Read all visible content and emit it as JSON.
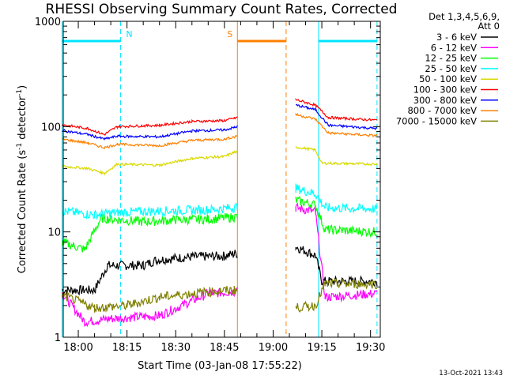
{
  "window": {
    "title": "RHESSI Observing Summary Count Rates, Corrected"
  },
  "chart_data": {
    "type": "line",
    "title": "RHESSI Observing Summary Count Rates, Corrected",
    "xlabel": "Start Time (03-Jan-08 17:55:22)",
    "ylabel": "Corrected Count Rate (s⁻¹ detector⁻¹)",
    "ylabel_parts": {
      "main": "Corrected Count Rate (s",
      "sup1": "-1",
      "mid": " detector",
      "sup2": "-1",
      "end": ")"
    },
    "yscale": "log",
    "ylim": [
      1,
      1000
    ],
    "xlim": [
      "17:55:22",
      "19:33:00"
    ],
    "xticks": [
      "18:00",
      "18:15",
      "18:30",
      "18:45",
      "19:00",
      "19:15",
      "19:30"
    ],
    "yticks": [
      "1",
      "10",
      "100",
      "1000"
    ],
    "grid": false,
    "legend_title": [
      "Det 1,3,4,5,6,9,",
      "Att 0"
    ],
    "legend_position": "top-right outside",
    "footer_date": "13-Oct-2021 13:43",
    "annotations": {
      "night_marker": "N",
      "saa_marker": "S"
    },
    "intervals": [
      {
        "label": "N",
        "color": "#00e5ff",
        "start": "17:55",
        "end": "18:13"
      },
      {
        "label": "",
        "color": "#00e5ff",
        "start": "19:14",
        "end": "19:32"
      },
      {
        "label": "S",
        "color": "#ff8000",
        "start": "18:49",
        "end": "19:04"
      }
    ],
    "gaps": [
      {
        "start": "18:49",
        "end": "19:07"
      }
    ],
    "series": [
      {
        "name": "3 - 6 keV",
        "color": "#000000",
        "points": [
          [
            "17:55",
            2.8
          ],
          [
            "18:05",
            2.8
          ],
          [
            "18:09",
            4.8
          ],
          [
            "18:20",
            4.8
          ],
          [
            "18:24",
            5.4
          ],
          [
            "18:35",
            5.8
          ],
          [
            "18:45",
            5.9
          ],
          [
            "18:48",
            6.2
          ],
          [
            "19:07",
            7.2
          ],
          [
            "19:13",
            6.0
          ],
          [
            "19:15",
            3.4
          ],
          [
            "19:32",
            3.4
          ]
        ]
      },
      {
        "name": "6 - 12 keV",
        "color": "#ff00ff",
        "points": [
          [
            "17:55",
            2.6
          ],
          [
            "18:02",
            1.4
          ],
          [
            "18:10",
            1.5
          ],
          [
            "18:25",
            1.6
          ],
          [
            "18:40",
            2.6
          ],
          [
            "18:48",
            2.7
          ],
          [
            "19:07",
            17.0
          ],
          [
            "19:13",
            15.5
          ],
          [
            "19:16",
            2.4
          ],
          [
            "19:32",
            2.6
          ]
        ]
      },
      {
        "name": "12 - 25 keV",
        "color": "#00ff00",
        "points": [
          [
            "17:55",
            8.0
          ],
          [
            "18:02",
            6.8
          ],
          [
            "18:07",
            13.5
          ],
          [
            "18:20",
            12.5
          ],
          [
            "18:30",
            13.0
          ],
          [
            "18:40",
            13.2
          ],
          [
            "18:48",
            13.8
          ],
          [
            "19:07",
            20.0
          ],
          [
            "19:13",
            18.0
          ],
          [
            "19:16",
            10.5
          ],
          [
            "19:32",
            10.0
          ]
        ]
      },
      {
        "name": "25 - 50 keV",
        "color": "#00ffff",
        "points": [
          [
            "17:55",
            15.8
          ],
          [
            "18:05",
            14.5
          ],
          [
            "18:12",
            15.3
          ],
          [
            "18:25",
            15.8
          ],
          [
            "18:40",
            16.2
          ],
          [
            "18:48",
            17.0
          ],
          [
            "19:07",
            26.0
          ],
          [
            "19:13",
            23.0
          ],
          [
            "19:16",
            17.0
          ],
          [
            "19:32",
            16.5
          ]
        ]
      },
      {
        "name": "50 - 100 keV",
        "color": "#d8d800",
        "points": [
          [
            "17:55",
            42
          ],
          [
            "18:03",
            40
          ],
          [
            "18:08",
            36
          ],
          [
            "18:12",
            44
          ],
          [
            "18:25",
            43
          ],
          [
            "18:35",
            50
          ],
          [
            "18:45",
            52
          ],
          [
            "18:48",
            57
          ],
          [
            "19:07",
            64
          ],
          [
            "19:13",
            60
          ],
          [
            "19:15",
            45
          ],
          [
            "19:32",
            44
          ]
        ]
      },
      {
        "name": "100 - 300 keV",
        "color": "#ff0000",
        "points": [
          [
            "17:55",
            104
          ],
          [
            "18:03",
            96
          ],
          [
            "18:08",
            84
          ],
          [
            "18:12",
            100
          ],
          [
            "18:25",
            103
          ],
          [
            "18:35",
            112
          ],
          [
            "18:45",
            114
          ],
          [
            "18:48",
            120
          ],
          [
            "19:07",
            180
          ],
          [
            "19:13",
            160
          ],
          [
            "19:17",
            122
          ],
          [
            "19:32",
            115
          ]
        ]
      },
      {
        "name": "300 - 800 keV",
        "color": "#0000ff",
        "points": [
          [
            "17:55",
            92
          ],
          [
            "18:03",
            84
          ],
          [
            "18:08",
            76
          ],
          [
            "18:12",
            81
          ],
          [
            "18:25",
            80
          ],
          [
            "18:35",
            91
          ],
          [
            "18:45",
            93
          ],
          [
            "18:48",
            98
          ],
          [
            "19:07",
            160
          ],
          [
            "19:13",
            145
          ],
          [
            "19:17",
            103
          ],
          [
            "19:32",
            96
          ]
        ]
      },
      {
        "name": "800 - 7000 keV",
        "color": "#ff8000",
        "points": [
          [
            "17:55",
            76
          ],
          [
            "18:03",
            70
          ],
          [
            "18:08",
            63
          ],
          [
            "18:12",
            68
          ],
          [
            "18:25",
            66
          ],
          [
            "18:35",
            74
          ],
          [
            "18:45",
            76
          ],
          [
            "18:48",
            80
          ],
          [
            "19:07",
            130
          ],
          [
            "19:13",
            118
          ],
          [
            "19:17",
            87
          ],
          [
            "19:32",
            82
          ]
        ]
      },
      {
        "name": "7000 - 15000 keV",
        "color": "#808000",
        "points": [
          [
            "17:55",
            2.5
          ],
          [
            "18:05",
            1.9
          ],
          [
            "18:15",
            2.0
          ],
          [
            "18:25",
            2.4
          ],
          [
            "18:40",
            2.7
          ],
          [
            "18:48",
            2.8
          ],
          [
            "19:07",
            1.9
          ],
          [
            "19:13",
            2.0
          ],
          [
            "19:16",
            3.2
          ],
          [
            "19:32",
            3.2
          ]
        ]
      }
    ]
  }
}
